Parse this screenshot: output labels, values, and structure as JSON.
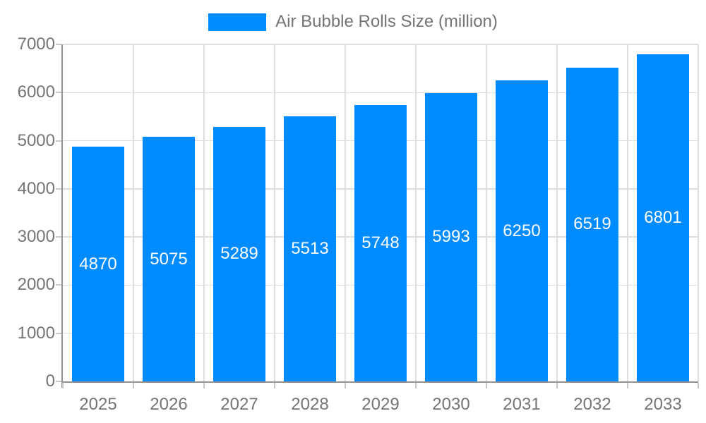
{
  "legend": {
    "label": "Air Bubble Rolls Size (million)"
  },
  "colors": {
    "bar": "#008CFF",
    "grid": "#dedede",
    "axis": "#919191",
    "tick": "#c9c9c9",
    "text": "#757575",
    "value_label": "#ffffff"
  },
  "chart_data": {
    "type": "bar",
    "title": "Air Bubble Rolls Size (million)",
    "categories": [
      "2025",
      "2026",
      "2027",
      "2028",
      "2029",
      "2030",
      "2031",
      "2032",
      "2033"
    ],
    "values": [
      4870,
      5075,
      5289,
      5513,
      5748,
      5993,
      6250,
      6519,
      6801
    ],
    "xlabel": "",
    "ylabel": "",
    "ylim": [
      0,
      7000
    ],
    "ytick_step": 1000,
    "grid": true,
    "legend_position": "top",
    "value_labels": "inside-middle"
  }
}
